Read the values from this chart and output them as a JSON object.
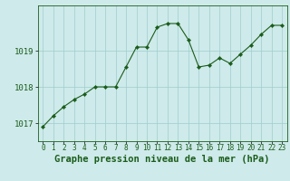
{
  "x": [
    0,
    1,
    2,
    3,
    4,
    5,
    6,
    7,
    8,
    9,
    10,
    11,
    12,
    13,
    14,
    15,
    16,
    17,
    18,
    19,
    20,
    21,
    22,
    23
  ],
  "y": [
    1016.9,
    1017.2,
    1017.45,
    1017.65,
    1017.8,
    1018.0,
    1018.0,
    1018.0,
    1018.55,
    1019.1,
    1019.1,
    1019.65,
    1019.75,
    1019.75,
    1019.3,
    1018.55,
    1018.6,
    1018.8,
    1018.65,
    1018.9,
    1019.15,
    1019.45,
    1019.7,
    1019.7
  ],
  "line_color": "#1a5c1a",
  "marker": "D",
  "marker_size": 2.2,
  "bg_color": "#ceeaea",
  "grid_color": "#a0cccc",
  "xlabel": "Graphe pression niveau de la mer (hPa)",
  "xlabel_fontsize": 7.5,
  "tick_color": "#1a5c1a",
  "ylim": [
    1016.5,
    1020.25
  ],
  "yticks": [
    1017,
    1018,
    1019
  ],
  "xlim": [
    -0.5,
    23.5
  ],
  "xticks": [
    0,
    1,
    2,
    3,
    4,
    5,
    6,
    7,
    8,
    9,
    10,
    11,
    12,
    13,
    14,
    15,
    16,
    17,
    18,
    19,
    20,
    21,
    22,
    23
  ],
  "ytick_fontsize": 6.5,
  "xtick_fontsize": 5.5
}
